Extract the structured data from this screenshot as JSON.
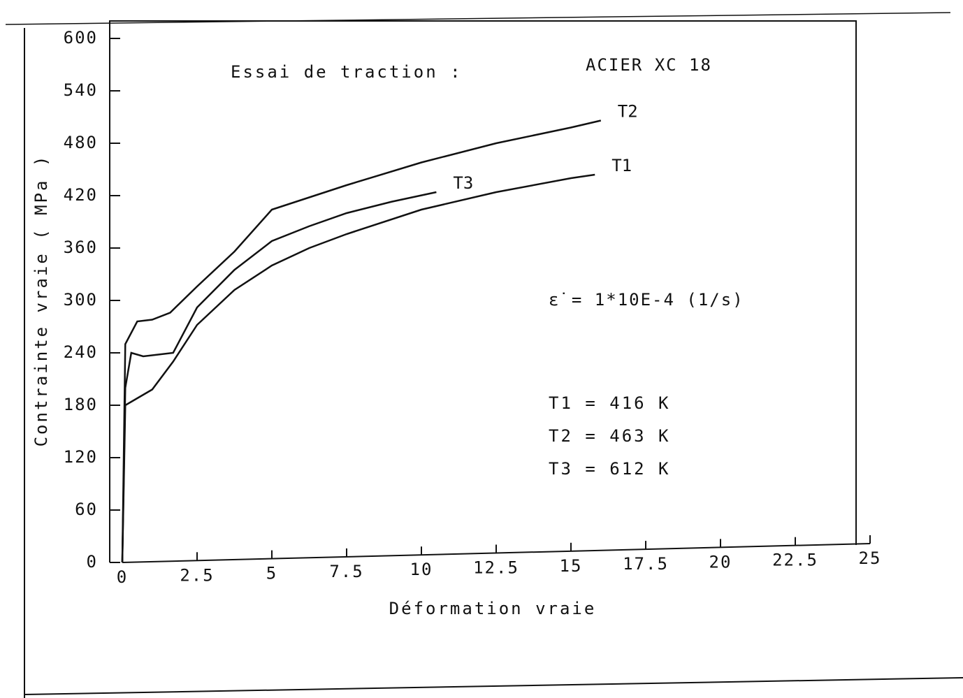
{
  "chart_data": {
    "type": "line",
    "title": "Essai de traction :",
    "subtitle": "ACIER XC 18",
    "x_label": "Déformation vraie",
    "y_label": "Contrainte vraie ( MPa )",
    "xlim": [
      0,
      25
    ],
    "xticks": [
      0,
      2.5,
      5,
      7.5,
      10,
      12.5,
      15,
      17.5,
      20,
      22.5,
      25
    ],
    "ylim": [
      0,
      600
    ],
    "yticks": [
      0,
      60,
      120,
      180,
      240,
      300,
      360,
      420,
      480,
      540,
      600
    ],
    "grid": false,
    "series": [
      {
        "name": "T1",
        "color": "#111111",
        "x": [
          0,
          0.1,
          0.5,
          1,
          1.7,
          2.5,
          3.75,
          5,
          6.25,
          7.5,
          10,
          12.5,
          15,
          15.8
        ],
        "values": [
          0,
          180,
          188,
          198,
          230,
          272,
          312,
          340,
          360,
          376,
          404,
          424,
          440,
          444
        ]
      },
      {
        "name": "T2",
        "color": "#111111",
        "x": [
          0,
          0.1,
          0.5,
          1,
          1.6,
          2.5,
          3.75,
          5,
          6.25,
          7.5,
          10,
          12.5,
          15,
          16
        ],
        "values": [
          0,
          250,
          276,
          278,
          286,
          316,
          356,
          404,
          418,
          432,
          458,
          480,
          498,
          506
        ]
      },
      {
        "name": "T3",
        "color": "#111111",
        "x": [
          0,
          0.1,
          0.3,
          0.7,
          1.7,
          2.5,
          3.75,
          5,
          6.25,
          7.5,
          9,
          10.5
        ],
        "values": [
          0,
          200,
          240,
          236,
          240,
          292,
          335,
          368,
          385,
          400,
          413,
          424
        ]
      }
    ],
    "annotations": [
      "ε̇ = 1*10E-4 (1/s)",
      "T1 = 416 K",
      "T2 = 463 K",
      "T3 = 612 K"
    ]
  }
}
